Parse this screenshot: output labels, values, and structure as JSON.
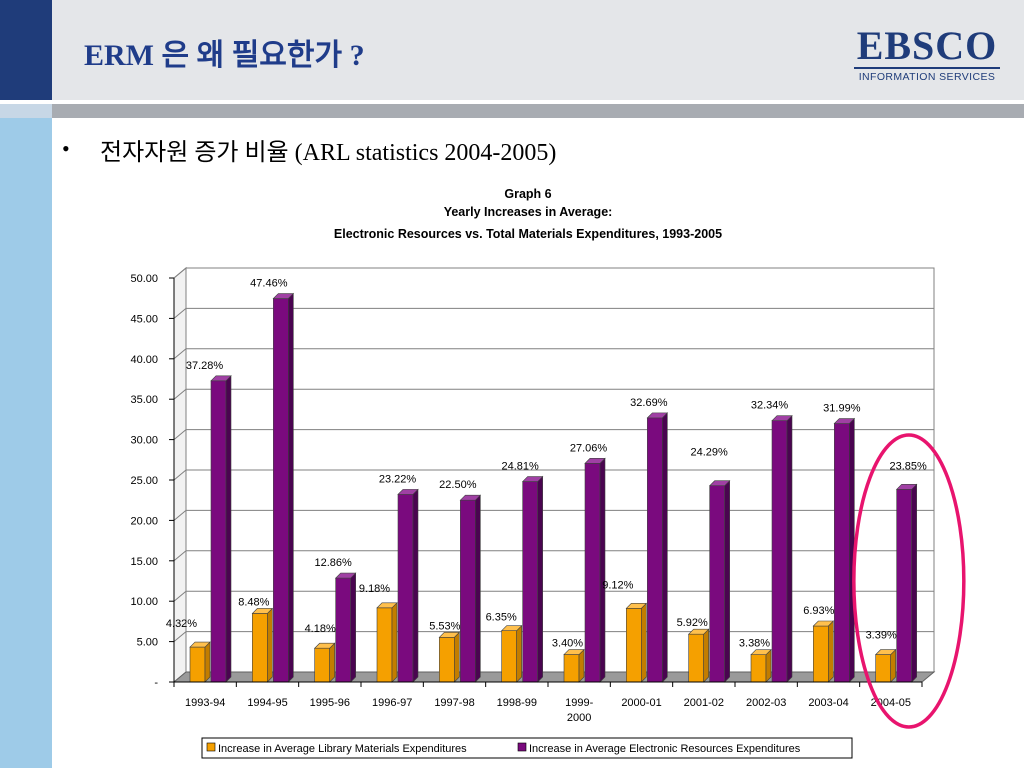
{
  "slide": {
    "title": "ERM 은 왜 필요한가 ?",
    "bullet_symbol": "•",
    "bullet_text": "전자자원 증가 비율 (ARL statistics 2004-2005)"
  },
  "logo": {
    "wordmark": "EBSCO",
    "tagline": "INFORMATION SERVICES"
  },
  "colors": {
    "title_blue": "#1f3c8a",
    "series_library": "#f5a000",
    "series_electronic": "#7a0a7e",
    "highlight_ellipse": "#e8146e"
  },
  "chart_data": {
    "type": "bar",
    "title": [
      "Graph 6",
      "Yearly Increases in Average:",
      "Electronic Resources vs. Total Materials Expenditures, 1993-2005"
    ],
    "categories": [
      "1993-94",
      "1994-95",
      "1995-96",
      "1996-97",
      "1997-98",
      "1998-99",
      "1999-2000",
      "2000-01",
      "2001-02",
      "2002-03",
      "2003-04",
      "2004-05"
    ],
    "category_labels": [
      [
        "1993-94"
      ],
      [
        "1994-95"
      ],
      [
        "1995-96"
      ],
      [
        "1996-97"
      ],
      [
        "1997-98"
      ],
      [
        "1998-99"
      ],
      [
        "1999-",
        "2000"
      ],
      [
        "2000-01"
      ],
      [
        "2001-02"
      ],
      [
        "2002-03"
      ],
      [
        "2003-04"
      ],
      [
        "2004-05"
      ]
    ],
    "series": [
      {
        "name": "Increase in Average Library Materials Expenditures",
        "values": [
          4.32,
          8.48,
          4.18,
          9.18,
          5.53,
          6.35,
          3.4,
          9.12,
          5.92,
          3.38,
          6.93,
          3.39
        ],
        "labels": [
          "4.32%",
          "8.48%",
          "4.18%",
          "9.18%",
          "5.53%",
          "6.35%",
          "3.40%",
          "9.12%",
          "5.92%",
          "3.38%",
          "6.93%",
          "3.39%"
        ]
      },
      {
        "name": "Increase in Average Electronic Resources Expenditures",
        "values": [
          37.28,
          47.46,
          12.86,
          23.22,
          22.5,
          24.81,
          27.06,
          32.69,
          24.29,
          32.34,
          31.99,
          23.85
        ],
        "labels": [
          "37.28%",
          "47.46%",
          "12.86%",
          "23.22%",
          "22.50%",
          "24.81%",
          "27.06%",
          "32.69%",
          "24.29%",
          "32.34%",
          "31.99%",
          "23.85%"
        ]
      }
    ],
    "y_ticks": [
      "-",
      "5.00",
      "10.00",
      "15.00",
      "20.00",
      "25.00",
      "30.00",
      "35.00",
      "40.00",
      "45.00",
      "50.00"
    ],
    "ylim": [
      0,
      50
    ],
    "grid": true,
    "legend_position": "bottom",
    "highlighted_category": "2004-05"
  }
}
